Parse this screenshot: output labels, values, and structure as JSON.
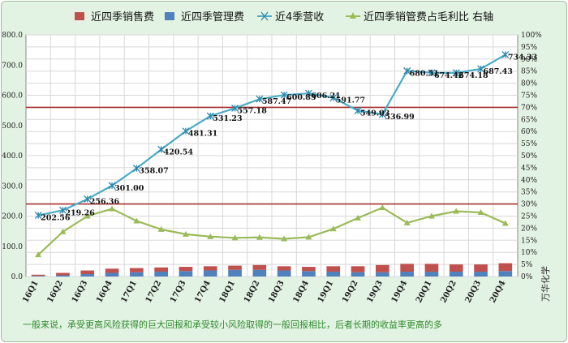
{
  "chart_data": {
    "type": "bar+line",
    "categories": [
      "16Q1",
      "16Q2",
      "16Q3",
      "16Q4",
      "17Q1",
      "17Q2",
      "17Q3",
      "17Q4",
      "18Q1",
      "18Q2",
      "18Q3",
      "18Q4",
      "19Q1",
      "19Q2",
      "19Q3",
      "19Q4",
      "20Q1",
      "20Q2",
      "20Q3",
      "20Q4"
    ],
    "series": [
      {
        "name": "近四季销售费",
        "type": "bar",
        "axis": "left",
        "color": "#c0504d",
        "stack": "cost",
        "values": [
          4,
          8,
          12,
          14,
          14,
          14,
          14,
          14,
          14,
          16,
          14,
          14,
          18,
          20,
          24,
          26,
          26,
          24,
          24,
          26
        ]
      },
      {
        "name": "近四季管理费",
        "type": "bar",
        "axis": "left",
        "color": "#4f81bd",
        "stack": "cost",
        "values": [
          2,
          4,
          8,
          12,
          14,
          16,
          18,
          20,
          22,
          22,
          20,
          18,
          16,
          14,
          14,
          16,
          16,
          16,
          16,
          18
        ]
      },
      {
        "name": "近4季营收",
        "type": "line",
        "axis": "left",
        "color": "#4bacc6",
        "marker": "asterisk",
        "values": [
          202.56,
          219.26,
          256.36,
          301.0,
          358.07,
          420.54,
          481.31,
          531.23,
          557.18,
          587.47,
          600.83,
          606.21,
          591.77,
          549.03,
          536.99,
          680.51,
          674.42,
          674.18,
          687.43,
          734.33
        ],
        "labels": [
          "202.56",
          "219.26",
          "256.36",
          "301.00",
          "358.07",
          "420.54",
          "481.31",
          "531.23",
          "557.18",
          "587.47",
          "600.83",
          "606.21",
          "591.77",
          "549.03",
          "536.99",
          "680.51",
          "674.42",
          "674.18",
          "687.43",
          "734.33"
        ]
      },
      {
        "name": "近四季销管费占毛利比 右轴",
        "type": "line",
        "axis": "right",
        "color": "#9bbb59",
        "marker": "triangle",
        "values": [
          9,
          18.5,
          25,
          28,
          23,
          19.5,
          17.5,
          16.5,
          16,
          16.2,
          15.6,
          16.3,
          19.7,
          24.2,
          28.5,
          22.2,
          25,
          27,
          26.5,
          22
        ]
      }
    ],
    "ylim": [
      0,
      800
    ],
    "yticks": [
      "0.0",
      "100.0",
      "200.0",
      "300.0",
      "400.0",
      "500.0",
      "600.0",
      "700.0",
      "800.0"
    ],
    "y2lim": [
      0,
      100
    ],
    "y2ticks": [
      "0%",
      "5%",
      "10%",
      "15%",
      "20%",
      "25%",
      "30%",
      "35%",
      "40%",
      "45%",
      "50%",
      "55%",
      "60%",
      "65%",
      "70%",
      "75%",
      "80%",
      "85%",
      "90%",
      "95%",
      "100%"
    ],
    "reference_lines_right": [
      {
        "value": 70,
        "color": "#a83232"
      },
      {
        "value": 30,
        "color": "#a83232"
      }
    ],
    "grid": true,
    "legend_position": "top",
    "xlabel": "",
    "ylabel": "",
    "y2label": "",
    "title": ""
  },
  "footnote": "一般来说，承受更高风险获得的巨大回报和承受较小风险取得的一般回报相比，后者长期的收益率更高的多",
  "watermark": "万华化学"
}
